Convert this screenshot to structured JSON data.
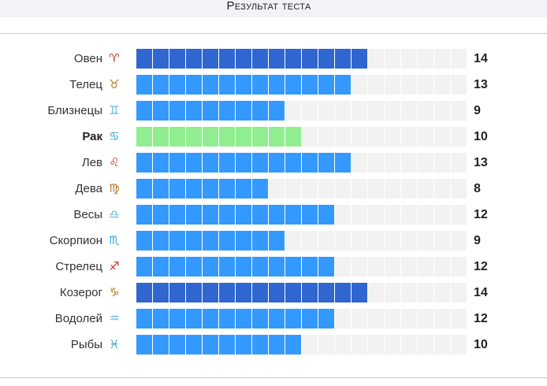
{
  "title": "Результат теста",
  "chart_data": {
    "type": "bar",
    "orientation": "horizontal",
    "max_cells": 20,
    "categories": [
      "Овен",
      "Телец",
      "Близнецы",
      "Рак",
      "Лев",
      "Дева",
      "Весы",
      "Скорпион",
      "Стрелец",
      "Козерог",
      "Водолей",
      "Рыбы"
    ],
    "values": [
      14,
      13,
      9,
      10,
      13,
      8,
      12,
      9,
      12,
      14,
      12,
      10
    ],
    "highlighted": "Рак",
    "symbols": [
      "♈",
      "♉",
      "♊",
      "♋",
      "♌",
      "♍",
      "♎",
      "♏",
      "♐",
      "♑",
      "♒",
      "♓"
    ],
    "symbol_colors": [
      "#c0392b",
      "#b7791f",
      "#5bb8d6",
      "#2aa8d8",
      "#c0392b",
      "#b7791f",
      "#5bb8d6",
      "#2aa8d8",
      "#c0392b",
      "#b7791f",
      "#5bb8d6",
      "#2aa8d8"
    ],
    "colors": {
      "max": "#2f66d0",
      "normal": "#3399ff",
      "highlight": "#90ee90",
      "empty": "#f2f2f2"
    }
  }
}
